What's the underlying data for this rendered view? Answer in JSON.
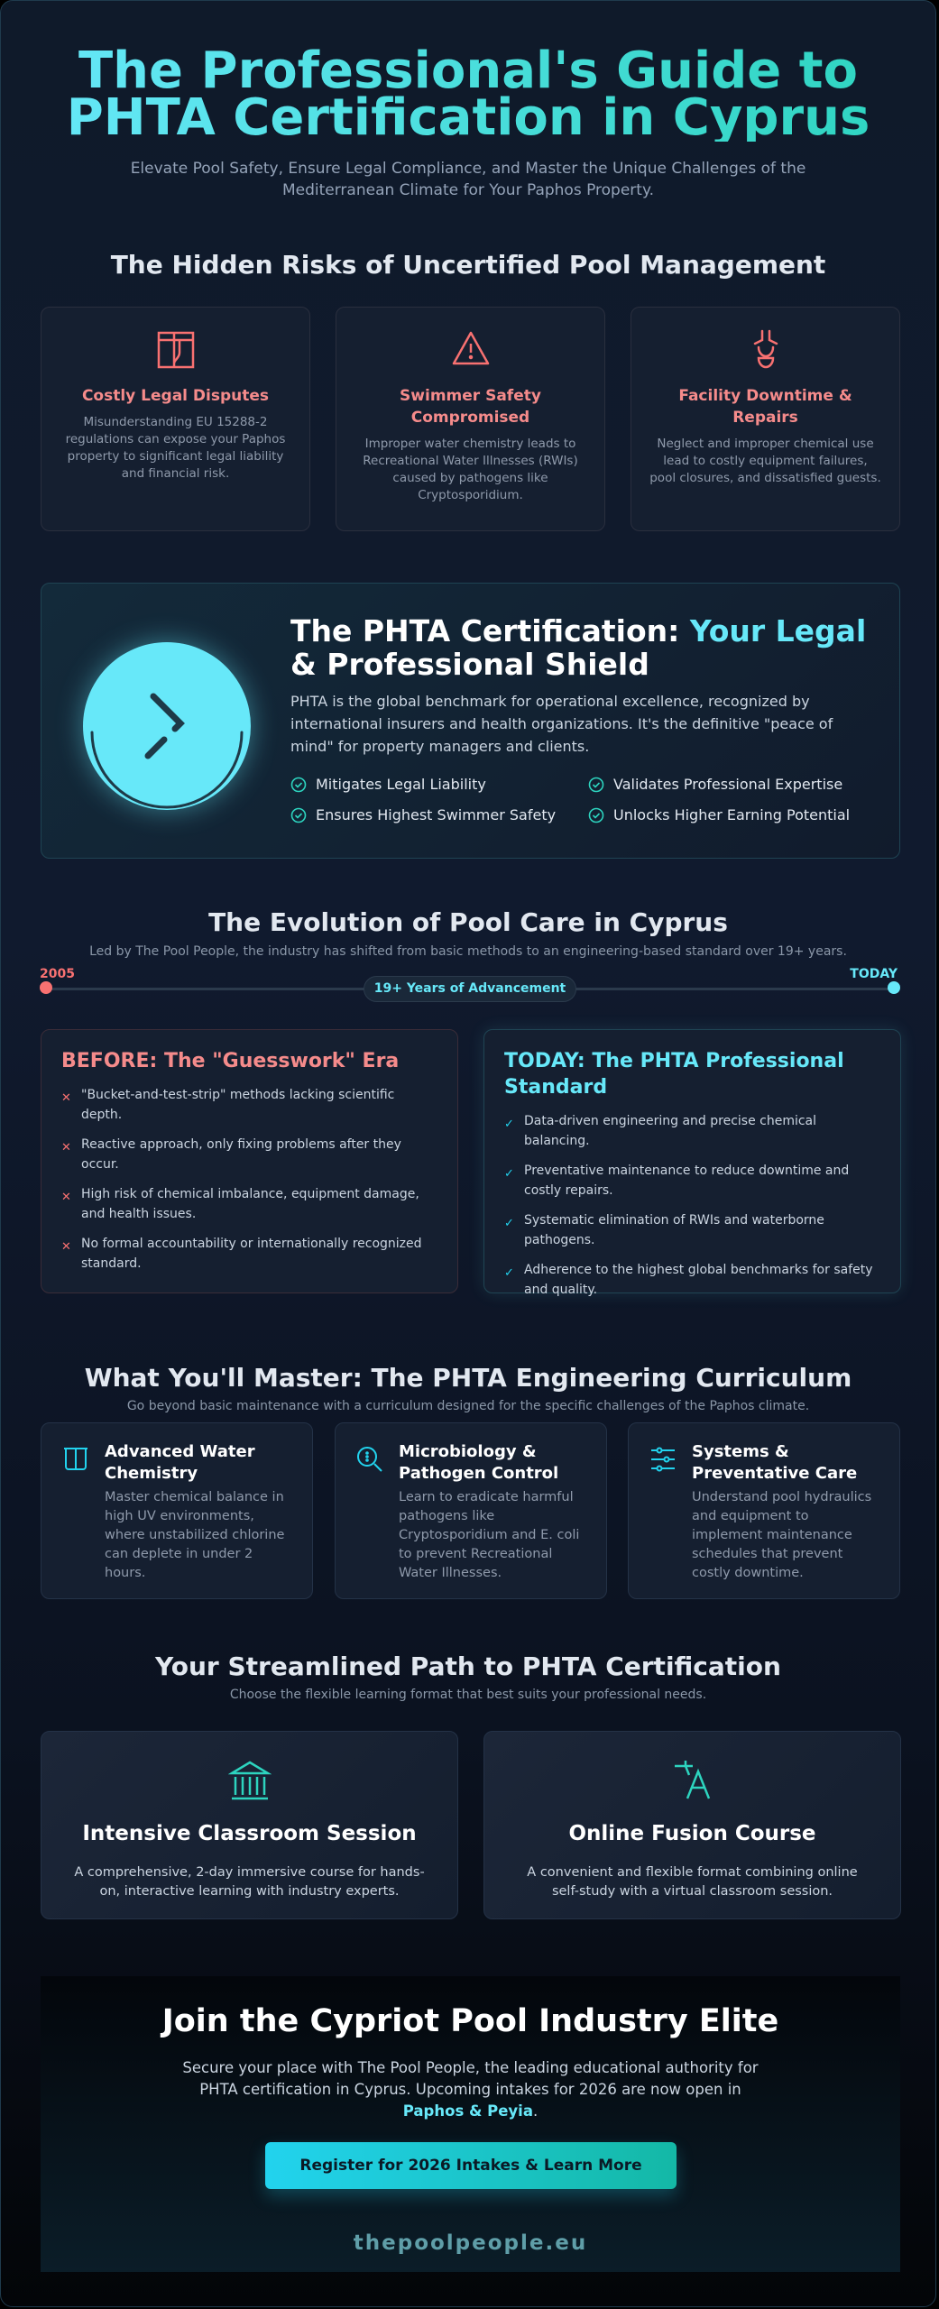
{
  "hero": {
    "title": "The Professional's Guide to PHTA Certification in Cyprus",
    "subtitle": "Elevate Pool Safety, Ensure Legal Compliance, and Master the Unique Challenges of the Mediterranean Climate for Your Paphos Property."
  },
  "risks": {
    "heading": "The Hidden Risks of Uncertified Pool Management",
    "items": [
      {
        "icon": "gavel-icon",
        "title": "Costly Legal Disputes",
        "desc": "Misunderstanding EU 15288-2 regulations can expose your Paphos property to significant legal liability and financial risk."
      },
      {
        "icon": "warning-triangle-icon",
        "title": "Swimmer Safety Compromised",
        "desc": "Improper water chemistry leads to Recreational Water Illnesses (RWIs) caused by pathogens like Cryptosporidium."
      },
      {
        "icon": "plumbing-icon",
        "title": "Facility Downtime & Repairs",
        "desc": "Neglect and improper chemical use lead to costly equipment failures, pool closures, and dissatisfied guests."
      }
    ]
  },
  "shield": {
    "title_a": "The PHTA Certification: ",
    "title_b": "Your Legal",
    "title_c": "& Professional Shield",
    "desc": "PHTA is the global benchmark for operational excellence, recognized by international insurers and health organizations. It's the definitive \"peace of mind\" for property managers and clients.",
    "features": [
      "Mitigates Legal Liability",
      "Validates Professional Expertise",
      "Ensures Highest Swimmer Safety",
      "Unlocks Higher Earning Potential"
    ]
  },
  "evolution": {
    "heading": "The Evolution of Pool Care in Cyprus",
    "subtitle": "Led by The Pool People, the industry has shifted from basic methods to an engineering-based standard over 19+ years.",
    "start": "2005",
    "end": "TODAY",
    "pill": "19+ Years of Advancement",
    "before": {
      "title": "BEFORE: The \"Guesswork\" Era",
      "items": [
        "\"Bucket-and-test-strip\" methods lacking scientific depth.",
        "Reactive approach, only fixing problems after they occur.",
        "High risk of chemical imbalance, equipment damage, and health issues.",
        "No formal accountability or internationally recognized standard."
      ]
    },
    "today": {
      "title": "TODAY: The PHTA Professional Standard",
      "items": [
        "Data-driven engineering and precise chemical balancing.",
        "Preventative maintenance to reduce downtime and costly repairs.",
        "Systematic elimination of RWIs and waterborne pathogens.",
        "Adherence to the highest global benchmarks for safety and quality."
      ]
    }
  },
  "curriculum": {
    "heading": "What You'll Master: The PHTA Engineering Curriculum",
    "subtitle": "Go beyond basic maintenance with a curriculum designed for the specific challenges of the Paphos climate.",
    "items": [
      {
        "icon": "beaker-icon",
        "title": "Advanced Water Chemistry",
        "desc": "Master chemical balance in high UV environments, where unstabilized chlorine can deplete in under 2 hours."
      },
      {
        "icon": "microscope-search-icon",
        "title": "Microbiology & Pathogen Control",
        "desc": "Learn to eradicate harmful pathogens like Cryptosporidium and E. coli to prevent Recreational Water Illnesses."
      },
      {
        "icon": "sliders-icon",
        "title": "Systems & Preventative Care",
        "desc": "Understand pool hydraulics and equipment to implement maintenance schedules that prevent costly downtime."
      }
    ]
  },
  "path": {
    "heading": "Your Streamlined Path to PHTA Certification",
    "subtitle": "Choose the flexible learning format that best suits your professional needs.",
    "items": [
      {
        "icon": "classroom-building-icon",
        "title": "Intensive Classroom Session",
        "desc": "A comprehensive, 2-day immersive course for hands-on, interactive learning with industry experts."
      },
      {
        "icon": "translate-icon",
        "title": "Online Fusion Course",
        "desc": "A convenient and flexible format combining online self-study with a virtual classroom session."
      }
    ]
  },
  "cta": {
    "title": "Join the Cypriot Pool Industry Elite",
    "text": "Secure your place with The Pool People, the leading educational authority for PHTA certification in Cyprus. Upcoming intakes for 2026 are now open in ",
    "highlight": "Paphos & Peyia",
    "end": ".",
    "button": "Register for 2026 Intakes & Learn More",
    "domain": "thepoolpeople.eu"
  },
  "colors": {
    "accent": "#67e8f9",
    "teal": "#2dd4bf",
    "danger": "#f87171",
    "background": "#0f1a2a"
  }
}
